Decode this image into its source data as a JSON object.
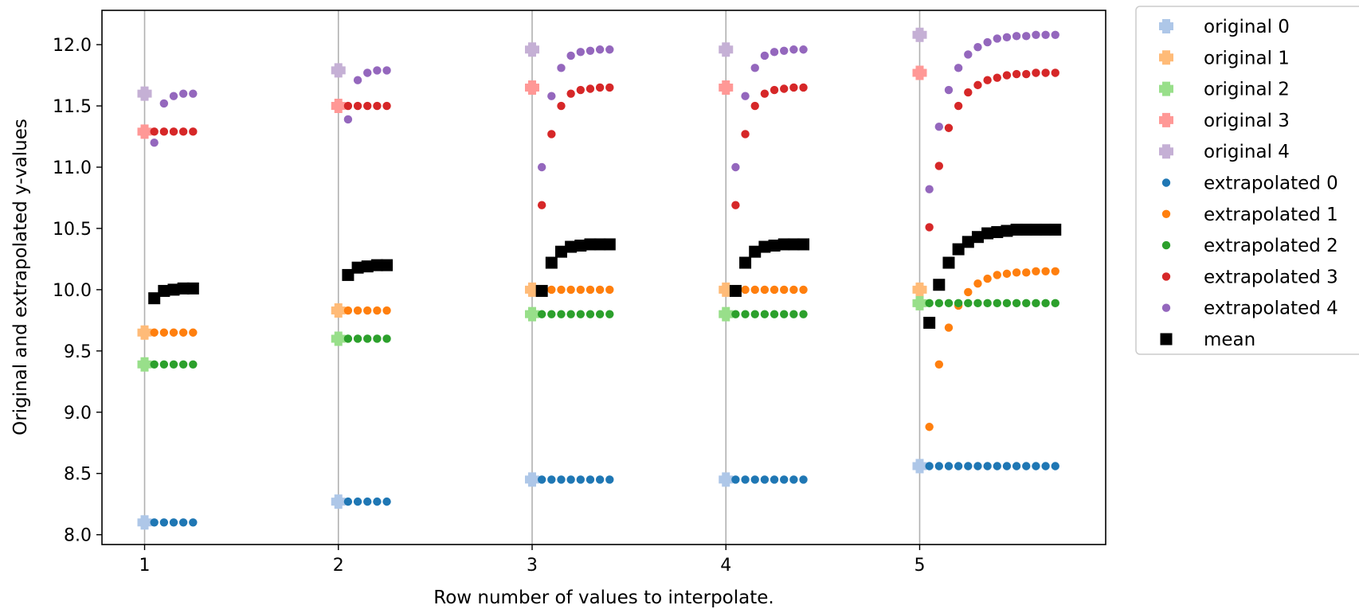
{
  "chart_data": {
    "type": "scatter",
    "title": "",
    "xlabel": "Row number of values to interpolate.",
    "ylabel": "Original and extrapolated y-values",
    "xlim": [
      0.78,
      5.96
    ],
    "ylim": [
      7.92,
      12.28
    ],
    "xticks": [
      1,
      2,
      3,
      4,
      5
    ],
    "yticks": [
      8.0,
      8.5,
      9.0,
      9.5,
      10.0,
      10.5,
      11.0,
      11.5,
      12.0
    ],
    "ytick_labels": [
      "8.0",
      "8.5",
      "9.0",
      "9.5",
      "10.0",
      "10.5",
      "11.0",
      "11.5",
      "12.0"
    ],
    "grid": "vertical at x ticks",
    "legend_position": "outside right, top",
    "rows": [
      1,
      2,
      3,
      4,
      5
    ],
    "original": [
      {
        "name": "original 0",
        "color": "#aec7e8",
        "values": [
          8.1,
          8.27,
          8.45,
          8.45,
          8.56
        ]
      },
      {
        "name": "original 1",
        "color": "#ffbb78",
        "values": [
          9.65,
          9.83,
          10.0,
          10.0,
          10.0
        ]
      },
      {
        "name": "original 2",
        "color": "#98df8a",
        "values": [
          9.39,
          9.6,
          9.8,
          9.8,
          9.89
        ]
      },
      {
        "name": "original 3",
        "color": "#ff9896",
        "values": [
          11.29,
          11.5,
          11.65,
          11.65,
          11.77
        ]
      },
      {
        "name": "original 4",
        "color": "#c5b0d5",
        "values": [
          11.6,
          11.79,
          11.96,
          11.96,
          12.08
        ]
      }
    ],
    "extrapolated_x": [
      [
        1.05,
        1.1,
        1.15,
        1.2,
        1.25
      ],
      [
        2.05,
        2.1,
        2.15,
        2.2,
        2.25
      ],
      [
        3.05,
        3.1,
        3.15,
        3.2,
        3.25,
        3.3,
        3.35,
        3.4
      ],
      [
        4.05,
        4.1,
        4.15,
        4.2,
        4.25,
        4.3,
        4.35,
        4.4
      ],
      [
        5.05,
        5.1,
        5.15,
        5.2,
        5.25,
        5.3,
        5.35,
        5.4,
        5.45,
        5.5,
        5.55,
        5.6,
        5.65,
        5.7
      ]
    ],
    "extrapolated": [
      {
        "name": "extrapolated 0",
        "color": "#1f77b4",
        "values": [
          [
            8.1,
            8.1,
            8.1,
            8.1,
            8.1
          ],
          [
            8.27,
            8.27,
            8.27,
            8.27,
            8.27
          ],
          [
            8.45,
            8.45,
            8.45,
            8.45,
            8.45,
            8.45,
            8.45,
            8.45
          ],
          [
            8.45,
            8.45,
            8.45,
            8.45,
            8.45,
            8.45,
            8.45,
            8.45
          ],
          [
            8.56,
            8.56,
            8.56,
            8.56,
            8.56,
            8.56,
            8.56,
            8.56,
            8.56,
            8.56,
            8.56,
            8.56,
            8.56,
            8.56
          ]
        ]
      },
      {
        "name": "extrapolated 1",
        "color": "#ff7f0e",
        "values": [
          [
            9.65,
            9.65,
            9.65,
            9.65,
            9.65
          ],
          [
            9.83,
            9.83,
            9.83,
            9.83,
            9.83
          ],
          [
            10.0,
            10.0,
            10.0,
            10.0,
            10.0,
            10.0,
            10.0,
            10.0
          ],
          [
            10.0,
            10.0,
            10.0,
            10.0,
            10.0,
            10.0,
            10.0,
            10.0
          ],
          [
            8.88,
            9.39,
            9.69,
            9.87,
            9.98,
            10.05,
            10.09,
            10.12,
            10.13,
            10.14,
            10.14,
            10.15,
            10.15,
            10.15
          ]
        ]
      },
      {
        "name": "extrapolated 2",
        "color": "#2ca02c",
        "values": [
          [
            9.39,
            9.39,
            9.39,
            9.39,
            9.39
          ],
          [
            9.6,
            9.6,
            9.6,
            9.6,
            9.6
          ],
          [
            9.8,
            9.8,
            9.8,
            9.8,
            9.8,
            9.8,
            9.8,
            9.8
          ],
          [
            9.8,
            9.8,
            9.8,
            9.8,
            9.8,
            9.8,
            9.8,
            9.8
          ],
          [
            9.89,
            9.89,
            9.89,
            9.89,
            9.89,
            9.89,
            9.89,
            9.89,
            9.89,
            9.89,
            9.89,
            9.89,
            9.89,
            9.89
          ]
        ]
      },
      {
        "name": "extrapolated 3",
        "color": "#d62728",
        "values": [
          [
            11.29,
            11.29,
            11.29,
            11.29,
            11.29
          ],
          [
            11.5,
            11.5,
            11.5,
            11.5,
            11.5
          ],
          [
            10.69,
            11.27,
            11.5,
            11.6,
            11.63,
            11.64,
            11.65,
            11.65
          ],
          [
            10.69,
            11.27,
            11.5,
            11.6,
            11.63,
            11.64,
            11.65,
            11.65
          ],
          [
            10.51,
            11.01,
            11.32,
            11.5,
            11.61,
            11.67,
            11.71,
            11.73,
            11.75,
            11.76,
            11.76,
            11.77,
            11.77,
            11.77
          ]
        ]
      },
      {
        "name": "extrapolated 4",
        "color": "#9467bd",
        "values": [
          [
            11.2,
            11.52,
            11.58,
            11.6,
            11.6
          ],
          [
            11.39,
            11.71,
            11.77,
            11.79,
            11.79
          ],
          [
            11.0,
            11.58,
            11.81,
            11.91,
            11.94,
            11.95,
            11.96,
            11.96
          ],
          [
            11.0,
            11.58,
            11.81,
            11.91,
            11.94,
            11.95,
            11.96,
            11.96
          ],
          [
            10.82,
            11.33,
            11.63,
            11.81,
            11.92,
            11.98,
            12.02,
            12.05,
            12.06,
            12.07,
            12.07,
            12.08,
            12.08,
            12.08
          ]
        ]
      }
    ],
    "mean": {
      "name": "mean",
      "color": "#000000",
      "values": [
        [
          9.93,
          9.99,
          10.0,
          10.01,
          10.01
        ],
        [
          10.12,
          10.18,
          10.19,
          10.2,
          10.2
        ],
        [
          9.99,
          10.22,
          10.31,
          10.35,
          10.36,
          10.37,
          10.37,
          10.37
        ],
        [
          9.99,
          10.22,
          10.31,
          10.35,
          10.36,
          10.37,
          10.37,
          10.37
        ],
        [
          9.73,
          10.04,
          10.22,
          10.33,
          10.39,
          10.43,
          10.46,
          10.47,
          10.48,
          10.49,
          10.49,
          10.49,
          10.49,
          10.49
        ]
      ]
    }
  }
}
